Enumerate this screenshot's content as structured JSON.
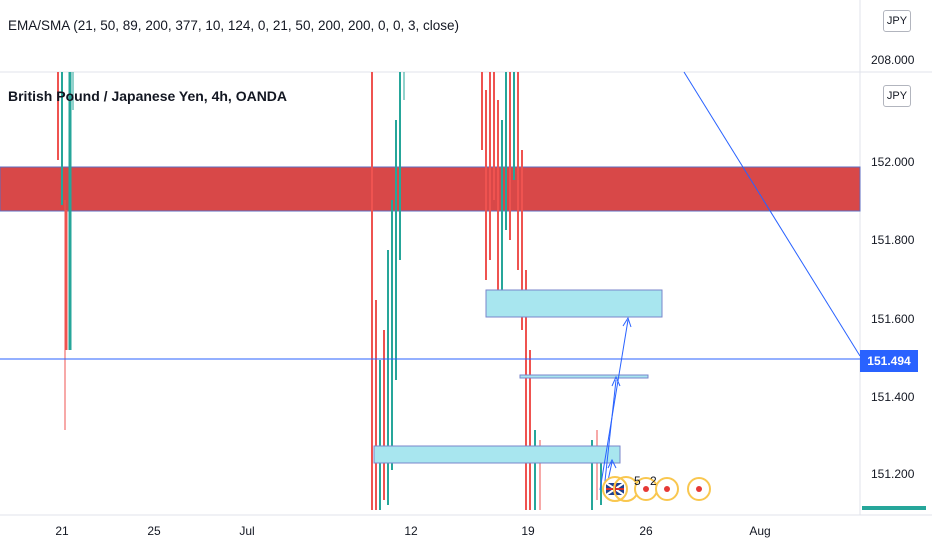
{
  "indicator_label": "EMA/SMA (21, 50, 89, 200, 377, 10, 124, 0, 21, 50, 200, 200, 0, 0, 3, close)",
  "symbol_title": "British Pound / Japanese Yen, 4h, OANDA",
  "currency_badge_top": "JPY",
  "currency_badge_main": "JPY",
  "top_scale_price": "208.000",
  "current_price": "151.494",
  "y_axis_ticks": [
    "152.000",
    "151.800",
    "151.600",
    "151.400",
    "151.200"
  ],
  "x_axis_ticks": [
    "21",
    "25",
    "Jul",
    "12",
    "19",
    "26",
    "Aug"
  ],
  "event_counts": [
    "5",
    "2"
  ],
  "colors": {
    "resistance_zone": "#d32f2f",
    "demand_zone": "#a8e6ef",
    "trend_line": "#2962ff",
    "bull_candle": "#26a69a",
    "bear_candle": "#ef5350",
    "price_tag": "#2962ff"
  }
}
